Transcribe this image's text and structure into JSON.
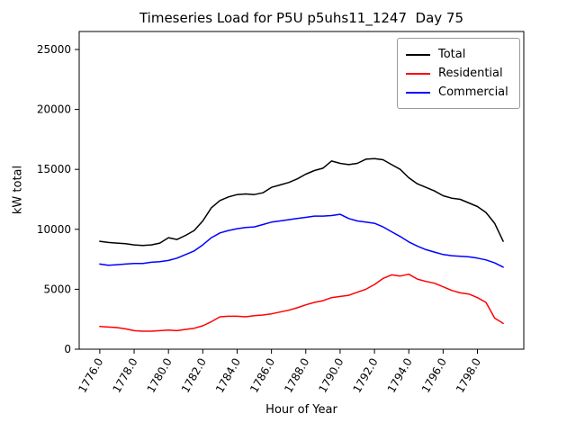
{
  "chart_data": {
    "type": "line",
    "title": "Timeseries Load for P5U p5uhs11_1247  Day 75",
    "xlabel": "Hour of Year",
    "ylabel": "kW total",
    "grid": false,
    "legend_position": "upper right",
    "xlim": [
      1774.8,
      1800.7
    ],
    "ylim": [
      0,
      26500
    ],
    "xticks": {
      "values": [
        1776,
        1778,
        1780,
        1782,
        1784,
        1786,
        1788,
        1790,
        1792,
        1794,
        1796,
        1798
      ],
      "labels": [
        "1776.0",
        "1778.0",
        "1780.0",
        "1782.0",
        "1784.0",
        "1786.0",
        "1788.0",
        "1790.0",
        "1792.0",
        "1794.0",
        "1796.0",
        "1798.0"
      ]
    },
    "yticks": {
      "values": [
        0,
        5000,
        10000,
        15000,
        20000,
        25000
      ],
      "labels": [
        "0",
        "5000",
        "10000",
        "15000",
        "20000",
        "25000"
      ]
    },
    "x": [
      1776.0,
      1776.5,
      1777.0,
      1777.5,
      1778.0,
      1778.5,
      1779.0,
      1779.5,
      1780.0,
      1780.5,
      1781.0,
      1781.5,
      1782.0,
      1782.5,
      1783.0,
      1783.5,
      1784.0,
      1784.5,
      1785.0,
      1785.5,
      1786.0,
      1786.5,
      1787.0,
      1787.5,
      1788.0,
      1788.5,
      1789.0,
      1789.5,
      1790.0,
      1790.5,
      1791.0,
      1791.5,
      1792.0,
      1792.5,
      1793.0,
      1793.5,
      1794.0,
      1794.5,
      1795.0,
      1795.5,
      1796.0,
      1796.5,
      1797.0,
      1797.5,
      1798.0,
      1798.5,
      1799.0,
      1799.5
    ],
    "series": [
      {
        "name": "Total",
        "color": "#000000",
        "values": [
          9000,
          8900,
          8850,
          8800,
          8700,
          8650,
          8700,
          8850,
          9300,
          9150,
          9500,
          9900,
          10700,
          11800,
          12400,
          12700,
          12900,
          12950,
          12900,
          13050,
          13500,
          13700,
          13900,
          14200,
          14600,
          14900,
          15100,
          15700,
          15500,
          15400,
          15500,
          15850,
          15900,
          15800,
          15400,
          15000,
          14300,
          13800,
          13500,
          13200,
          12800,
          12600,
          12500,
          12200,
          11900,
          11400,
          10500,
          9000
        ]
      },
      {
        "name": "Residential",
        "color": "#ff0000",
        "values": [
          1900,
          1850,
          1800,
          1700,
          1550,
          1500,
          1500,
          1550,
          1600,
          1550,
          1650,
          1750,
          1950,
          2300,
          2700,
          2750,
          2750,
          2700,
          2800,
          2850,
          2950,
          3100,
          3250,
          3450,
          3700,
          3900,
          4050,
          4300,
          4400,
          4500,
          4750,
          5000,
          5400,
          5900,
          6200,
          6100,
          6250,
          5850,
          5650,
          5500,
          5200,
          4900,
          4700,
          4600,
          4300,
          3900,
          2600,
          2150
        ]
      },
      {
        "name": "Commercial",
        "color": "#0000ff",
        "values": [
          7100,
          7000,
          7050,
          7100,
          7150,
          7150,
          7250,
          7300,
          7400,
          7600,
          7900,
          8200,
          8700,
          9300,
          9700,
          9900,
          10050,
          10150,
          10200,
          10400,
          10600,
          10700,
          10800,
          10900,
          11000,
          11100,
          11100,
          11150,
          11250,
          10900,
          10700,
          10600,
          10500,
          10200,
          9800,
          9400,
          8950,
          8600,
          8300,
          8100,
          7900,
          7800,
          7750,
          7700,
          7600,
          7450,
          7200,
          6850
        ]
      }
    ]
  }
}
